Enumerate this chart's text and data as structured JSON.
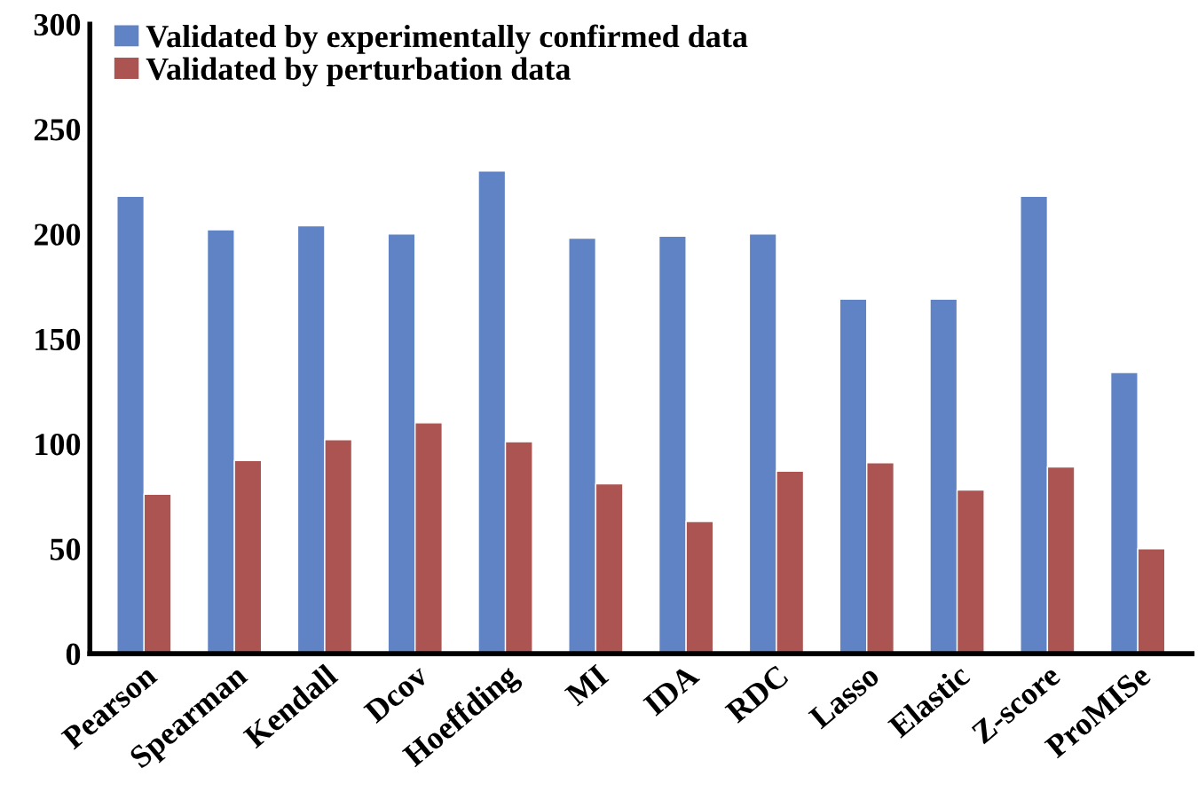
{
  "chart_data": {
    "type": "bar",
    "categories": [
      "Pearson",
      "Spearman",
      "Kendall",
      "Dcov",
      "Hoeffding",
      "MI",
      "IDA",
      "RDC",
      "Lasso",
      "Elastic",
      "Z-score",
      "ProMISe"
    ],
    "series": [
      {
        "name": "Validated by experimentally confirmed data",
        "color": "#5f83c4",
        "values": [
          218,
          202,
          204,
          200,
          230,
          198,
          199,
          200,
          169,
          169,
          218,
          134
        ]
      },
      {
        "name": "Validated by perturbation data",
        "color": "#ab5452",
        "values": [
          76,
          92,
          102,
          110,
          101,
          81,
          63,
          87,
          91,
          78,
          89,
          50
        ]
      }
    ],
    "ylim": [
      0,
      300
    ],
    "yticks": [
      0,
      50,
      100,
      150,
      200,
      250,
      300
    ],
    "grid": false,
    "legend": "top left"
  }
}
